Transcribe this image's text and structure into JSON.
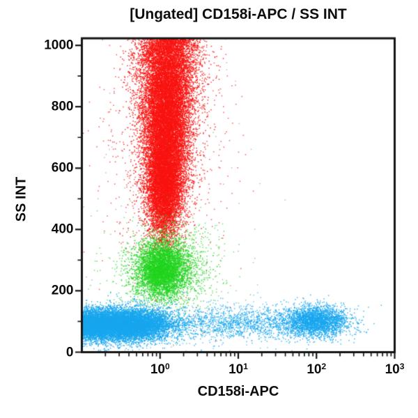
{
  "chart_data": {
    "type": "scatter",
    "subtype": "flow-cytometry-dot-plot",
    "title": "[Ungated] CD158i-APC / SS INT",
    "xlabel": "CD158i-APC",
    "ylabel": "SS INT",
    "x_scale": "log",
    "x_range_log10": [
      -1,
      3
    ],
    "y_scale": "linear",
    "y_range": [
      0,
      1023
    ],
    "grid": false,
    "legend": false,
    "frame_color": "#141414",
    "background_color": "#ffffff",
    "x_ticks": [
      {
        "mantissa": "10",
        "exponent": "0",
        "value_log10": 0
      },
      {
        "mantissa": "10",
        "exponent": "1",
        "value_log10": 1
      },
      {
        "mantissa": "10",
        "exponent": "2",
        "value_log10": 2
      },
      {
        "mantissa": "10",
        "exponent": "3",
        "value_log10": 3
      }
    ],
    "y_ticks": [
      0,
      200,
      400,
      600,
      800,
      1000
    ],
    "y_minor_ticks": [
      100,
      300,
      500,
      700,
      900
    ],
    "colors": {
      "red_population": "#f81411",
      "green_population": "#20d41e",
      "blue_population": "#18a6ee",
      "debris": "#8a8a7c"
    },
    "populations": [
      {
        "id": "red-high-ss-core-top",
        "color_key": "red_population",
        "n": 13000,
        "x_center_log10": 0.1,
        "x_sd_log10": 0.19,
        "y_center": 980,
        "y_sd": 185,
        "alpha": 0.9
      },
      {
        "id": "red-high-ss-core-mid",
        "color_key": "red_population",
        "n": 10000,
        "x_center_log10": 0.07,
        "x_sd_log10": 0.135,
        "y_center": 690,
        "y_sd": 135,
        "alpha": 0.9
      },
      {
        "id": "red-high-ss-core-low",
        "color_key": "red_population",
        "n": 4200,
        "x_center_log10": 0.05,
        "x_sd_log10": 0.105,
        "y_center": 520,
        "y_sd": 75,
        "alpha": 0.9
      },
      {
        "id": "red-halo",
        "color_key": "red_population",
        "n": 950,
        "x_center_log10": 0.08,
        "x_sd_log10": 0.4,
        "y_center": 720,
        "y_sd": 270,
        "alpha": 0.72
      },
      {
        "id": "debris-specks",
        "color_key": "debris",
        "n": 130,
        "x_center_log10": 0.15,
        "x_sd_log10": 0.7,
        "y_center": 430,
        "y_sd": 330,
        "alpha": 0.6
      },
      {
        "id": "green-mid-ss-core",
        "color_key": "green_population",
        "n": 3600,
        "x_center_log10": 0.02,
        "x_sd_log10": 0.155,
        "y_center": 268,
        "y_sd": 44,
        "alpha": 0.9
      },
      {
        "id": "green-halo",
        "color_key": "green_population",
        "n": 1650,
        "x_center_log10": 0.12,
        "x_sd_log10": 0.27,
        "y_center": 278,
        "y_sd": 62,
        "alpha": 0.75
      },
      {
        "id": "green-scatter",
        "color_key": "green_population",
        "n": 270,
        "x_center_log10": 0.0,
        "x_sd_log10": 0.5,
        "y_center": 240,
        "y_sd": 105,
        "alpha": 0.65
      },
      {
        "id": "blue-low-ss-negative",
        "color_key": "blue_population",
        "n": 9500,
        "x_center_log10": -0.85,
        "x_sd_log10": 0.36,
        "y_center": 88,
        "y_sd": 25,
        "alpha": 0.9
      },
      {
        "id": "blue-low-ss-mid",
        "color_key": "blue_population",
        "n": 5200,
        "x_center_log10": -0.33,
        "x_sd_log10": 0.26,
        "y_center": 91,
        "y_sd": 26,
        "alpha": 0.9
      },
      {
        "id": "blue-smear-tail",
        "color_key": "blue_population",
        "n": 1500,
        "x_center_log10": 1.05,
        "x_sd_log10": 0.55,
        "y_center": 95,
        "y_sd": 26,
        "alpha": 0.8
      },
      {
        "id": "blue-cd158i-positive",
        "color_key": "blue_population",
        "n": 2600,
        "x_center_log10": 2.0,
        "x_sd_log10": 0.21,
        "y_center": 100,
        "y_sd": 25,
        "alpha": 0.85
      },
      {
        "id": "blue-halo",
        "color_key": "blue_population",
        "n": 360,
        "x_center_log10": 0.2,
        "x_sd_log10": 0.9,
        "y_center": 95,
        "y_sd": 48,
        "alpha": 0.6
      }
    ]
  }
}
